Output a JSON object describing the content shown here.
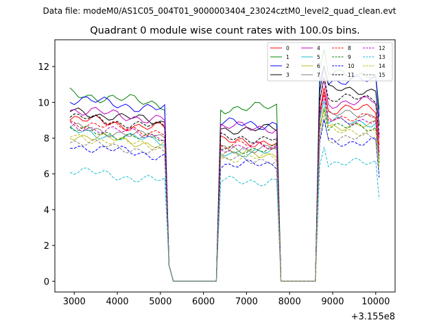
{
  "figure": {
    "suptitle": "Data file: modeM0/AS1C05_004T01_9000003404_23024cztM0_level2_quad_clean.evt",
    "title": "Quadrant 0 module wise count rates with 100.0s bins.",
    "offset_label": "+3.155e8"
  },
  "chart_data": {
    "type": "line",
    "title": "Quadrant 0 module wise count rates with 100.0s bins.",
    "xlabel": "",
    "ylabel": "",
    "x_offset": 315500000,
    "xlim": [
      2550,
      10450
    ],
    "ylim": [
      -0.6,
      13.5
    ],
    "xticks": [
      3000,
      4000,
      5000,
      6000,
      7000,
      8000,
      9000,
      10000
    ],
    "yticks": [
      0,
      2,
      4,
      6,
      8,
      10,
      12
    ],
    "legend_location": "top-right",
    "legend_columns": 4,
    "segments": [
      {
        "start": 2900,
        "end": 5100,
        "step": 100
      },
      {
        "start": 6400,
        "end": 7700,
        "step": 100
      },
      {
        "start": 8700,
        "end": 10000,
        "step": 100
      }
    ],
    "segment_ramps": {
      "drop1": [
        5200,
        5300
      ],
      "rise1": [
        6300,
        6400
      ],
      "drop2": [
        7800,
        7900
      ],
      "rise2": [
        8600,
        8700
      ],
      "tail_x": 10080
    },
    "series": [
      {
        "name": "0",
        "color": "#ff0000",
        "dash": "solid",
        "base": [
          8.5,
          7.8,
          9.6
        ],
        "amp": 0.35
      },
      {
        "name": "1",
        "color": "#008000",
        "dash": "solid",
        "base": [
          9.9,
          9.7,
          11.6
        ],
        "amp": 0.35
      },
      {
        "name": "2",
        "color": "#0000ff",
        "dash": "solid",
        "base": [
          9.6,
          8.8,
          11.2
        ],
        "amp": 0.35
      },
      {
        "name": "3",
        "color": "#000000",
        "dash": "solid",
        "base": [
          8.9,
          8.5,
          10.7
        ],
        "amp": 0.3
      },
      {
        "name": "4",
        "color": "#bf00bf",
        "dash": "solid",
        "base": [
          9.0,
          8.6,
          10.0
        ],
        "amp": 0.35
      },
      {
        "name": "5",
        "color": "#17becf",
        "dash": "solid",
        "base": [
          7.8,
          7.2,
          8.9
        ],
        "amp": 0.3
      },
      {
        "name": "6",
        "color": "#bcbd22",
        "dash": "solid",
        "base": [
          7.6,
          7.1,
          8.7
        ],
        "amp": 0.3
      },
      {
        "name": "7",
        "color": "#7f7f7f",
        "dash": "solid",
        "base": [
          8.0,
          7.4,
          9.3
        ],
        "amp": 0.3
      },
      {
        "name": "8",
        "color": "#ff0000",
        "dash": "dashed",
        "base": [
          8.3,
          7.6,
          9.2
        ],
        "amp": 0.3
      },
      {
        "name": "9",
        "color": "#008000",
        "dash": "dashed",
        "base": [
          7.9,
          7.4,
          8.6
        ],
        "amp": 0.3
      },
      {
        "name": "10",
        "color": "#0000ff",
        "dash": "dashed",
        "base": [
          7.0,
          6.5,
          7.8
        ],
        "amp": 0.3
      },
      {
        "name": "11",
        "color": "#000000",
        "dash": "dashed",
        "base": [
          8.6,
          8.0,
          10.2
        ],
        "amp": 0.3
      },
      {
        "name": "12",
        "color": "#bf00bf",
        "dash": "dashed",
        "base": [
          8.1,
          7.5,
          9.0
        ],
        "amp": 0.3
      },
      {
        "name": "13",
        "color": "#17becf",
        "dash": "dashed",
        "base": [
          5.6,
          5.6,
          6.6
        ],
        "amp": 0.3
      },
      {
        "name": "14",
        "color": "#bcbd22",
        "dash": "dashed",
        "base": [
          7.5,
          6.9,
          8.4
        ],
        "amp": 0.3
      },
      {
        "name": "15",
        "color": "#7f7f7f",
        "dash": "dashed",
        "base": [
          7.2,
          6.8,
          8.0
        ],
        "amp": 0.3
      }
    ]
  }
}
